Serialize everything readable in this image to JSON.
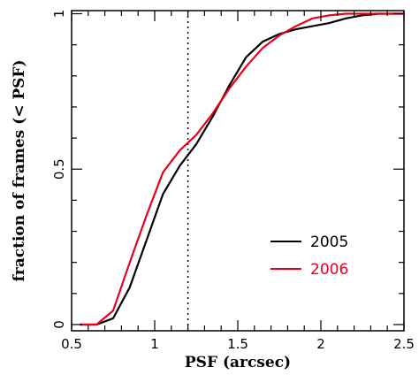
{
  "chart_data": {
    "type": "line",
    "xlabel": "PSF (arcsec)",
    "ylabel": "fraction of frames (< PSF)",
    "xlim": [
      0.5,
      2.5
    ],
    "ylim": [
      -0.02,
      1.01
    ],
    "x_major_ticks": [
      0.5,
      1,
      1.5,
      2,
      2.5
    ],
    "x_tick_labels": [
      "0.5",
      "1",
      "1.5",
      "2",
      "2.5"
    ],
    "y_major_ticks": [
      0,
      0.5,
      1
    ],
    "y_tick_labels": [
      "0",
      "0.5",
      "1"
    ],
    "x_minor_step": 0.1,
    "y_minor_step": 0.1,
    "grid": false,
    "legend_position": "lower-right",
    "vline": {
      "x": 1.2,
      "style": "dotted",
      "color": "#000000"
    },
    "series": [
      {
        "name": "2005",
        "color": "#000000",
        "x": [
          0.55,
          0.65,
          0.75,
          0.85,
          0.95,
          1.05,
          1.15,
          1.25,
          1.35,
          1.45,
          1.55,
          1.65,
          1.75,
          1.85,
          1.95,
          2.05,
          2.15,
          2.25,
          2.35,
          2.45,
          2.5
        ],
        "values": [
          0.0,
          0.0,
          0.02,
          0.12,
          0.27,
          0.42,
          0.51,
          0.58,
          0.67,
          0.77,
          0.86,
          0.91,
          0.935,
          0.95,
          0.96,
          0.97,
          0.985,
          0.995,
          1.0,
          1.0,
          1.0
        ]
      },
      {
        "name": "2006",
        "color": "#e8001c",
        "x": [
          0.55,
          0.65,
          0.75,
          0.85,
          0.95,
          1.05,
          1.15,
          1.25,
          1.35,
          1.45,
          1.55,
          1.65,
          1.75,
          1.85,
          1.95,
          2.05,
          2.15,
          2.25,
          2.35,
          2.45,
          2.5
        ],
        "values": [
          0.0,
          0.0,
          0.045,
          0.2,
          0.35,
          0.49,
          0.56,
          0.61,
          0.68,
          0.76,
          0.83,
          0.89,
          0.93,
          0.96,
          0.985,
          0.995,
          1.0,
          1.0,
          1.0,
          1.0,
          1.0
        ]
      }
    ]
  }
}
